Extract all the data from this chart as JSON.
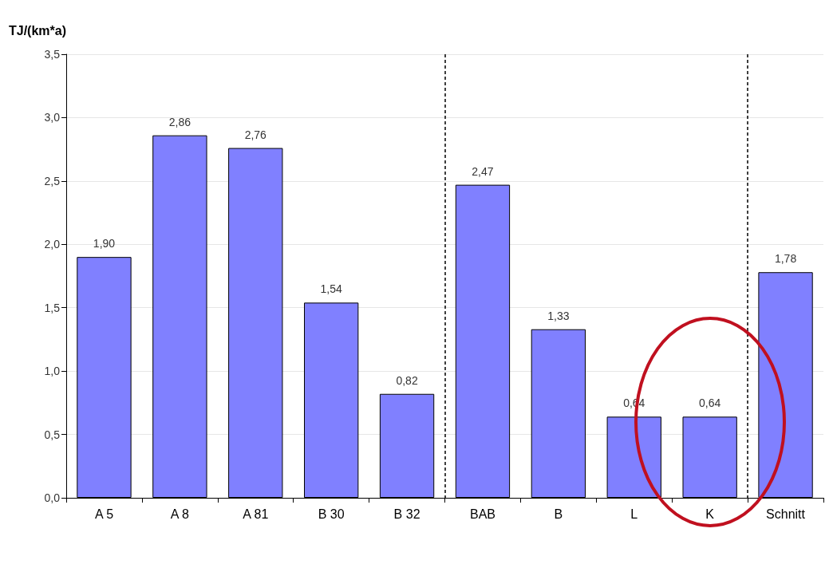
{
  "chart_data": {
    "type": "bar",
    "ylabel": "TJ/(km*a)",
    "categories": [
      "A 5",
      "A 8",
      "A 81",
      "B 30",
      "B 32",
      "BAB",
      "B",
      "L",
      "K",
      "Schnitt"
    ],
    "values": [
      1.9,
      2.86,
      2.76,
      1.54,
      0.82,
      2.47,
      1.33,
      0.64,
      0.64,
      1.78
    ],
    "value_labels": [
      "1,90",
      "2,86",
      "2,76",
      "1,54",
      "0,82",
      "2,47",
      "1,33",
      "0,64",
      "0,64",
      "1,78"
    ],
    "color": "#8080ff",
    "ylim": [
      0,
      3.5
    ],
    "yticks": [
      {
        "value": 0,
        "label": "0,0"
      },
      {
        "value": 0.5,
        "label": "0,5"
      },
      {
        "value": 1,
        "label": "1,0"
      },
      {
        "value": 1.5,
        "label": "1,5"
      },
      {
        "value": 2,
        "label": "2,0"
      },
      {
        "value": 2.5,
        "label": "2,5"
      },
      {
        "value": 3,
        "label": "3,0"
      },
      {
        "value": 3.5,
        "label": "3,5"
      }
    ],
    "grid": "y"
  }
}
